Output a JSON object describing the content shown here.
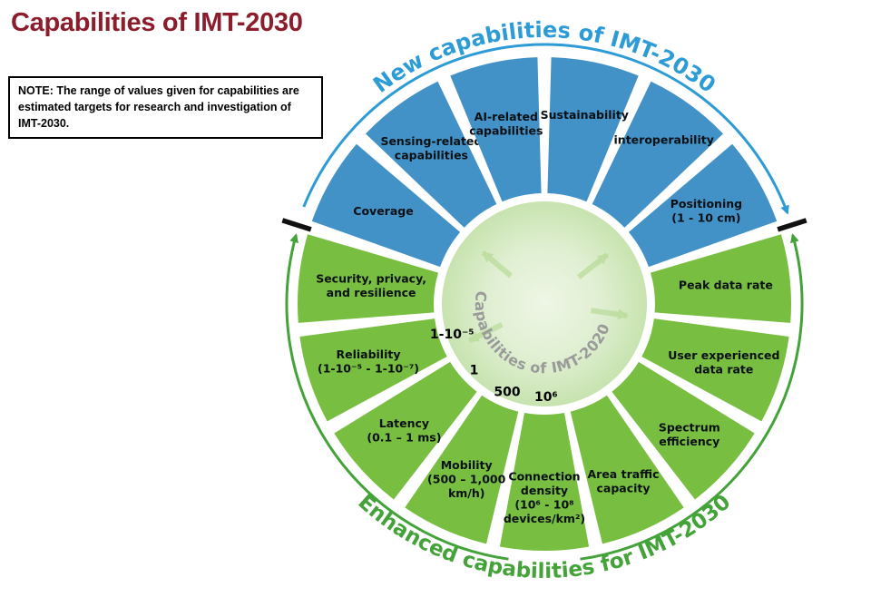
{
  "title": "Capabilities of IMT-2030",
  "note": "NOTE: The range of values given for capabilities are estimated targets for research and investigation of IMT-2030.",
  "wheel": {
    "top_arc_label": "New capabilities of IMT-2030",
    "bottom_arc_label": "Enhanced capabilities for IMT-2030",
    "center_label": "Capabilities of IMT-2020",
    "colors": {
      "blue_segment": "#4292C8",
      "green_segment": "#77BE41",
      "top_label_blue": "#2D9BD5",
      "bottom_label_green": "#43A339",
      "center_text_gray": "#9A9A9A",
      "segment_text": "#0A1014",
      "tick_black": "#111111",
      "pale_arrow": "#AED689"
    },
    "blue_segments": [
      {
        "id": "coverage",
        "lines": [
          "Coverage"
        ],
        "labelR": 205
      },
      {
        "id": "sensing-related",
        "lines": [
          "Sensing-related",
          "capabilities"
        ],
        "labelR": 212
      },
      {
        "id": "ai-related",
        "lines": [
          "AI-related",
          "capabilities"
        ],
        "labelR": 203
      },
      {
        "id": "sustainability",
        "lines": [
          "Sustainability"
        ],
        "labelR": 213
      },
      {
        "id": "interoperability",
        "lines": [
          "interoperability"
        ],
        "labelR": 224
      },
      {
        "id": "positioning",
        "lines": [
          "Positioning",
          "(1 - 10 cm)"
        ],
        "labelR": 206
      }
    ],
    "green_segments": [
      {
        "id": "security",
        "lines": [
          "Security, privacy,",
          "and resilience"
        ],
        "labelR": 192
      },
      {
        "id": "reliability",
        "lines": [
          "Reliability",
          "(1-10⁻⁵ - 1-10⁻⁷)"
        ],
        "labelR": 204
      },
      {
        "id": "latency",
        "lines": [
          "Latency",
          "(0.1 – 1 ms)"
        ],
        "labelR": 208
      },
      {
        "id": "mobility",
        "lines": [
          "Mobility",
          "(500 – 1,000",
          "km/h)"
        ],
        "labelR": 211
      },
      {
        "id": "connection-density",
        "lines": [
          "Connection",
          "density",
          "(10⁶ -  10⁸",
          "devices/km²)"
        ],
        "labelR": 213
      },
      {
        "id": "area-traffic-capacity",
        "lines": [
          "Area traffic",
          "capacity"
        ],
        "labelR": 214
      },
      {
        "id": "spectrum-efficiency",
        "lines": [
          "Spectrum",
          "efficiency"
        ],
        "labelR": 215
      },
      {
        "id": "user-experienced-data-rate",
        "lines": [
          "User experienced",
          "data rate"
        ],
        "labelR": 208
      },
      {
        "id": "peak-data-rate",
        "lines": [
          "Peak data rate"
        ],
        "labelR": 201
      }
    ],
    "center_values": [
      {
        "text": "1-10⁻⁵",
        "angle": 198,
        "r": 107
      },
      {
        "text": "1",
        "angle": 223,
        "r": 106
      },
      {
        "text": "500",
        "angle": 247,
        "r": 105
      },
      {
        "text": "10⁶",
        "angle": 271,
        "r": 102
      }
    ]
  }
}
